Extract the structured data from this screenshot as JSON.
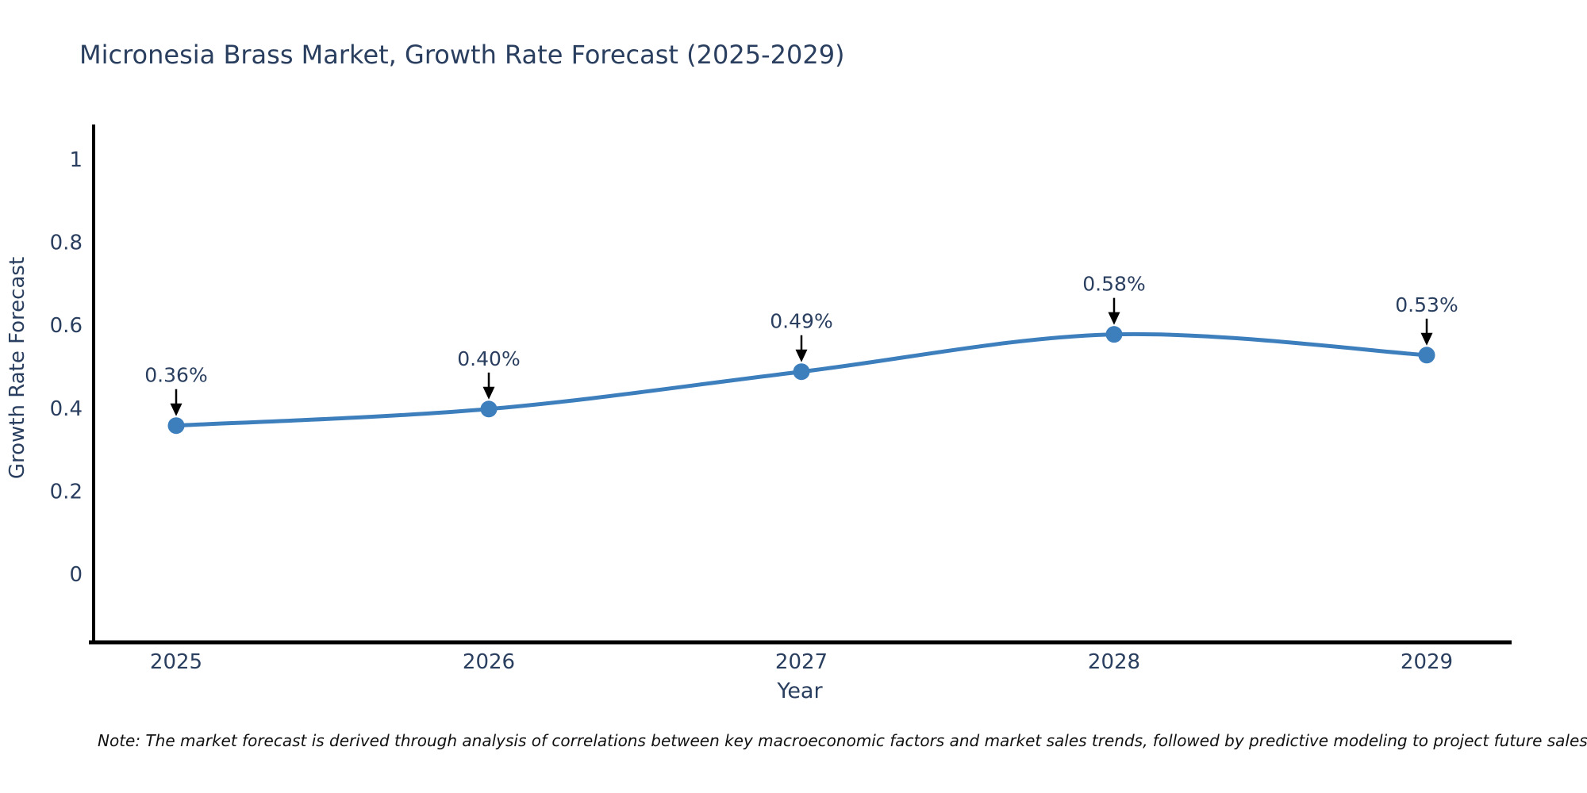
{
  "chart_data": {
    "type": "line",
    "curve": "spline",
    "title": "Micronesia Brass Market, Growth Rate Forecast (2025-2029)",
    "xlabel": "Year",
    "ylabel": "Growth Rate Forecast",
    "categories": [
      "2025",
      "2026",
      "2027",
      "2028",
      "2029"
    ],
    "values": [
      0.36,
      0.4,
      0.49,
      0.58,
      0.53
    ],
    "point_labels": [
      "0.36%",
      "0.40%",
      "0.49%",
      "0.58%",
      "0.53%"
    ],
    "ytick_values": [
      0,
      0.2,
      0.4,
      0.6,
      0.8,
      1
    ],
    "ytick_labels": [
      "0",
      "0.2",
      "0.4",
      "0.6",
      "0.8",
      "1"
    ],
    "ylim": [
      -0.16,
      1.09
    ],
    "grid": false,
    "legend": "none",
    "colors": {
      "line": "#3d7ebd",
      "marker": "#3d7ebd",
      "axis": "#000000",
      "annotation_arrow": "#000000",
      "text": "#2a3f5f",
      "note_text": "#111111",
      "background": "#ffffff"
    }
  },
  "note": {
    "text": "Note: The market forecast is derived through analysis of correlations between key macroeconomic factors and market sales trends, followed by predictive modeling to project future sales"
  }
}
